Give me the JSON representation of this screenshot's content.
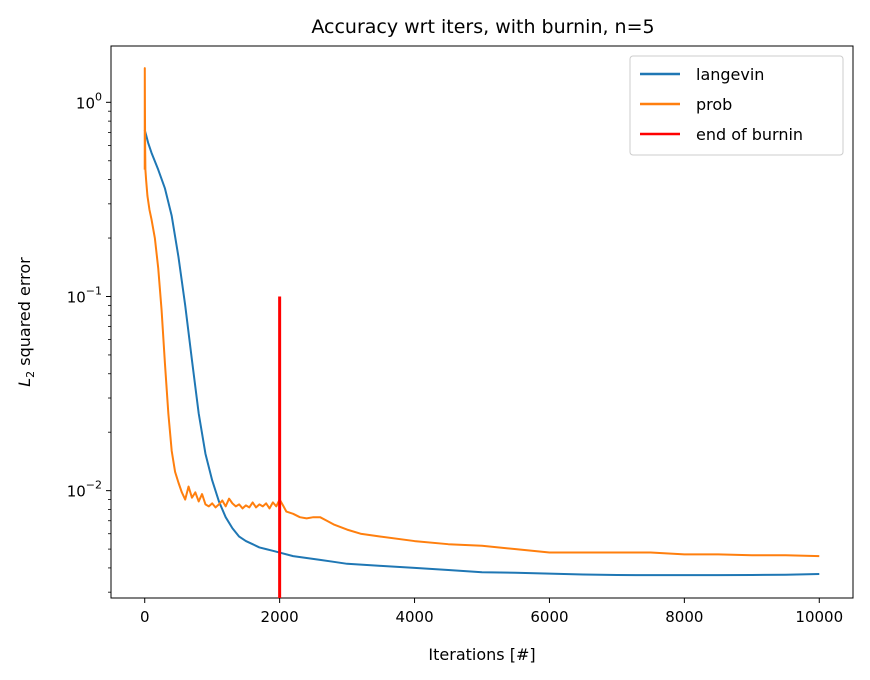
{
  "chart_data": {
    "type": "line",
    "title": "Accuracy wrt iters, with burnin, n=5",
    "xlabel": "Iterations [#]",
    "ylabel_main": "L",
    "ylabel_sub": "2",
    "ylabel_rest": " squared error",
    "xlim": [
      -500,
      10500
    ],
    "ylim": [
      0.0028,
      1.95
    ],
    "yscale": "log",
    "xticks": [
      0,
      2000,
      4000,
      6000,
      8000,
      10000
    ],
    "xtick_labels": [
      "0",
      "2000",
      "4000",
      "6000",
      "8000",
      "10000"
    ],
    "yticks": [
      {
        "value": 1,
        "base": "10",
        "exp": "0"
      },
      {
        "value": 0.1,
        "base": "10",
        "exp": "−1"
      },
      {
        "value": 0.01,
        "base": "10",
        "exp": "−2"
      }
    ],
    "legend_position": "upper-right",
    "series": [
      {
        "name": "langevin",
        "color": "#1f77b4",
        "x": [
          0,
          20,
          50,
          100,
          200,
          300,
          400,
          500,
          600,
          700,
          800,
          900,
          1000,
          1100,
          1200,
          1300,
          1400,
          1500,
          1600,
          1700,
          1800,
          1900,
          2000,
          2200,
          2400,
          2600,
          2800,
          3000,
          3500,
          4000,
          4500,
          5000,
          5500,
          6000,
          6500,
          7000,
          7500,
          8000,
          8500,
          9000,
          9500,
          10000
        ],
        "y": [
          0.72,
          0.68,
          0.62,
          0.55,
          0.45,
          0.36,
          0.26,
          0.16,
          0.09,
          0.047,
          0.025,
          0.0155,
          0.0113,
          0.0088,
          0.0073,
          0.0064,
          0.0058,
          0.0055,
          0.0053,
          0.0051,
          0.005,
          0.0049,
          0.0048,
          0.0046,
          0.0045,
          0.0044,
          0.0043,
          0.0042,
          0.0041,
          0.004,
          0.0039,
          0.0038,
          0.00378,
          0.00374,
          0.0037,
          0.00368,
          0.00367,
          0.00367,
          0.00367,
          0.00368,
          0.00369,
          0.00372
        ]
      },
      {
        "name": "prob",
        "color": "#ff7f0e",
        "x": [
          0,
          1,
          3,
          6,
          10,
          20,
          40,
          70,
          100,
          150,
          200,
          250,
          300,
          350,
          400,
          450,
          500,
          550,
          600,
          650,
          700,
          750,
          800,
          850,
          900,
          950,
          1000,
          1050,
          1100,
          1150,
          1200,
          1250,
          1300,
          1350,
          1400,
          1450,
          1500,
          1550,
          1600,
          1650,
          1700,
          1750,
          1800,
          1850,
          1900,
          1950,
          2000,
          2050,
          2100,
          2200,
          2300,
          2400,
          2500,
          2600,
          2700,
          2800,
          3000,
          3200,
          3500,
          4000,
          4500,
          5000,
          5500,
          6000,
          6500,
          7000,
          7500,
          8000,
          8500,
          9000,
          9500,
          10000
        ],
        "y": [
          0.45,
          1.5,
          0.95,
          0.6,
          0.45,
          0.4,
          0.33,
          0.28,
          0.25,
          0.2,
          0.14,
          0.085,
          0.045,
          0.025,
          0.016,
          0.0125,
          0.011,
          0.0098,
          0.009,
          0.0105,
          0.0092,
          0.0098,
          0.0088,
          0.0096,
          0.0085,
          0.0083,
          0.0086,
          0.0082,
          0.0085,
          0.0089,
          0.0083,
          0.0091,
          0.0086,
          0.0083,
          0.0085,
          0.0081,
          0.0084,
          0.0082,
          0.0087,
          0.0082,
          0.0085,
          0.0083,
          0.0086,
          0.0081,
          0.0087,
          0.0083,
          0.009,
          0.0084,
          0.0078,
          0.0076,
          0.0073,
          0.0072,
          0.0073,
          0.0073,
          0.007,
          0.0067,
          0.0063,
          0.006,
          0.0058,
          0.0055,
          0.0053,
          0.0052,
          0.005,
          0.0048,
          0.0048,
          0.0048,
          0.0048,
          0.0047,
          0.0047,
          0.00465,
          0.00465,
          0.0046
        ]
      },
      {
        "name": "end of burnin",
        "color": "#ff0000",
        "x": [
          2000,
          2000
        ],
        "y": [
          0.0028,
          0.1
        ]
      }
    ]
  }
}
